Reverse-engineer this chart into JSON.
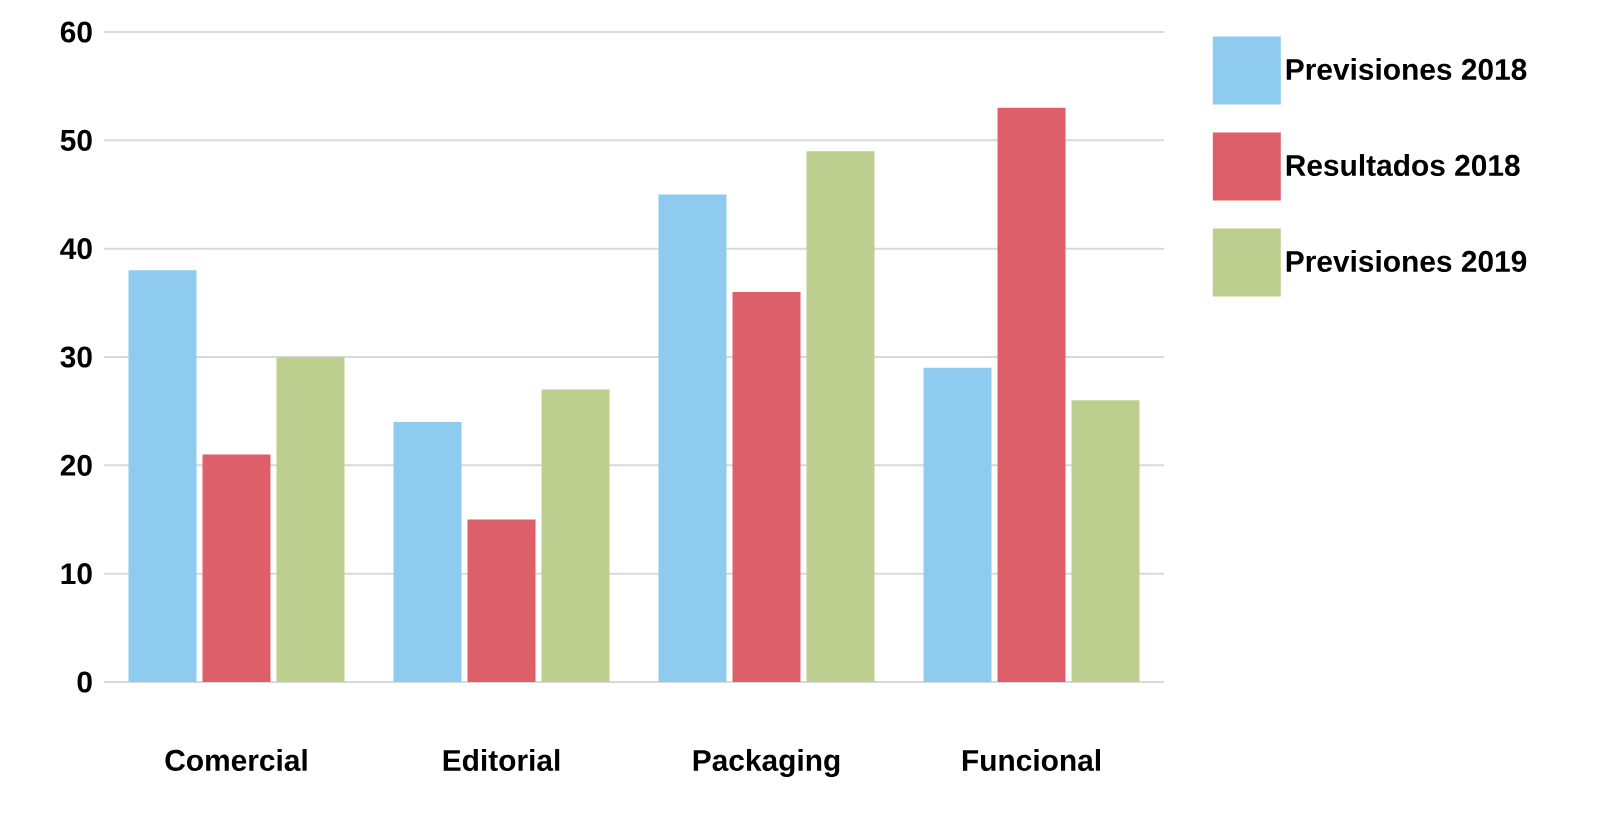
{
  "chart_data": {
    "type": "bar",
    "categories": [
      "Comercial",
      "Editorial",
      "Packaging",
      "Funcional"
    ],
    "series": [
      {
        "name": "Previsiones 2018",
        "color": "#8ecbee",
        "values": [
          38,
          24,
          45,
          29
        ]
      },
      {
        "name": "Resultados 2018",
        "color": "#dc5f69",
        "values": [
          21,
          15,
          36,
          53
        ]
      },
      {
        "name": "Previsiones 2019",
        "color": "#bccf8e",
        "values": [
          30,
          27,
          49,
          26
        ]
      }
    ],
    "ylim": [
      0,
      60
    ],
    "yticks": [
      0,
      10,
      20,
      30,
      40,
      50,
      60
    ],
    "grid": "y",
    "legend": "top right"
  }
}
